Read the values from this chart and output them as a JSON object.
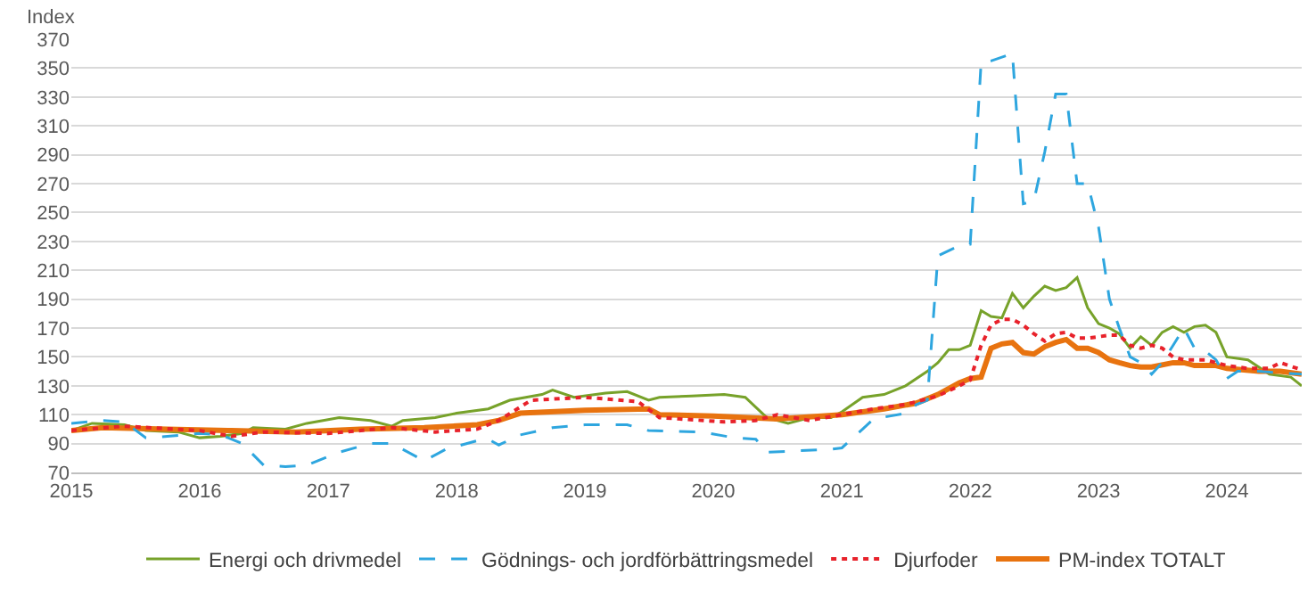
{
  "chart_data": {
    "type": "line",
    "ylabel": "Index",
    "ylim": [
      70,
      370
    ],
    "yticks": [
      70,
      90,
      110,
      130,
      150,
      170,
      190,
      210,
      230,
      250,
      270,
      290,
      310,
      330,
      350,
      370
    ],
    "xlim": [
      "2015-01",
      "2024-08"
    ],
    "xticks": [
      {
        "value": "2015-01",
        "label": "2015"
      },
      {
        "value": "2016-01",
        "label": "2016"
      },
      {
        "value": "2017-01",
        "label": "2017"
      },
      {
        "value": "2018-01",
        "label": "2018"
      },
      {
        "value": "2019-01",
        "label": "2019"
      },
      {
        "value": "2020-01",
        "label": "2020"
      },
      {
        "value": "2021-01",
        "label": "2021"
      },
      {
        "value": "2022-01",
        "label": "2022"
      },
      {
        "value": "2023-01",
        "label": "2023"
      },
      {
        "value": "2024-01",
        "label": "2024"
      }
    ],
    "grid": "y",
    "legend": "bottom",
    "marker": "none",
    "series": [
      {
        "name": "Energi och drivmedel",
        "color": "#77a22a",
        "line_style": "solid",
        "x": [
          "2015-01",
          "2015-03",
          "2015-06",
          "2015-08",
          "2015-11",
          "2016-01",
          "2016-03",
          "2016-05",
          "2016-06",
          "2016-09",
          "2016-11",
          "2017-02",
          "2017-05",
          "2017-07",
          "2017-08",
          "2017-11",
          "2018-01",
          "2018-04",
          "2018-06",
          "2018-09",
          "2018-10",
          "2018-12",
          "2019-03",
          "2019-05",
          "2019-07",
          "2019-08",
          "2019-11",
          "2020-02",
          "2020-04",
          "2020-06",
          "2020-08",
          "2020-10",
          "2020-12",
          "2021-01",
          "2021-03",
          "2021-05",
          "2021-07",
          "2021-09",
          "2021-10",
          "2021-11",
          "2021-12",
          "2022-01",
          "2022-02",
          "2022-03",
          "2022-04",
          "2022-05",
          "2022-06",
          "2022-07",
          "2022-08",
          "2022-09",
          "2022-10",
          "2022-11",
          "2022-12",
          "2023-01",
          "2023-02",
          "2023-03",
          "2023-04",
          "2023-05",
          "2023-06",
          "2023-07",
          "2023-08",
          "2023-09",
          "2023-10",
          "2023-11",
          "2023-12",
          "2024-01",
          "2024-03",
          "2024-05",
          "2024-07",
          "2024-08"
        ],
        "values": [
          99,
          104,
          103,
          99,
          98,
          94,
          95,
          97,
          101,
          100,
          104,
          108,
          106,
          102,
          106,
          108,
          111,
          114,
          120,
          124,
          127,
          122,
          125,
          126,
          120,
          122,
          123,
          124,
          122,
          108,
          104,
          108,
          108,
          112,
          122,
          124,
          130,
          140,
          146,
          155,
          155,
          158,
          182,
          178,
          177,
          194,
          184,
          192,
          199,
          196,
          198,
          205,
          184,
          173,
          170,
          166,
          156,
          164,
          158,
          167,
          171,
          167,
          171,
          172,
          167,
          150,
          148,
          138,
          136,
          130
        ]
      },
      {
        "name": "Gödnings- och jordförbättringsmedel",
        "color": "#2ea6df",
        "line_style": "dashed",
        "x": [
          "2015-01",
          "2015-04",
          "2015-06",
          "2015-08",
          "2015-10",
          "2016-01",
          "2016-03",
          "2016-05",
          "2016-07",
          "2016-09",
          "2016-11",
          "2017-02",
          "2017-05",
          "2017-07",
          "2017-10",
          "2017-12",
          "2018-03",
          "2018-04",
          "2018-05",
          "2018-07",
          "2018-10",
          "2019-01",
          "2019-04",
          "2019-05",
          "2019-07",
          "2019-12",
          "2020-03",
          "2020-05",
          "2020-06",
          "2020-09",
          "2020-12",
          "2021-01",
          "2021-03",
          "2021-04",
          "2021-07",
          "2021-08",
          "2021-09",
          "2021-10",
          "2021-12",
          "2022-01",
          "2022-02",
          "2022-03",
          "2022-05",
          "2022-06",
          "2022-07",
          "2022-08",
          "2022-09",
          "2022-10",
          "2022-11",
          "2022-12",
          "2023-01",
          "2023-02",
          "2023-03",
          "2023-04",
          "2023-05",
          "2023-06",
          "2023-07",
          "2023-08",
          "2023-09",
          "2023-10",
          "2023-11",
          "2023-12",
          "2024-01",
          "2024-02",
          "2024-04",
          "2024-06",
          "2024-08"
        ],
        "values": [
          104,
          106,
          105,
          94,
          95,
          97,
          96,
          90,
          75,
          74,
          75,
          84,
          90,
          90,
          78,
          86,
          92,
          93,
          89,
          96,
          101,
          103,
          103,
          103,
          99,
          98,
          94,
          93,
          84,
          85,
          86,
          87,
          100,
          107,
          111,
          117,
          120,
          220,
          227,
          228,
          354,
          355,
          360,
          256,
          258,
          292,
          332,
          332,
          270,
          270,
          240,
          190,
          170,
          150,
          146,
          138,
          146,
          158,
          170,
          156,
          154,
          148,
          135,
          140,
          140,
          139,
          138
        ]
      },
      {
        "name": "Djurfoder",
        "color": "#e8222b",
        "line_style": "dotted",
        "x": [
          "2015-01",
          "2015-06",
          "2016-01",
          "2016-04",
          "2016-07",
          "2017-01",
          "2017-07",
          "2017-11",
          "2018-03",
          "2018-05",
          "2018-08",
          "2019-01",
          "2019-06",
          "2019-08",
          "2020-02",
          "2020-05",
          "2020-07",
          "2020-10",
          "2021-01",
          "2021-04",
          "2021-07",
          "2021-10",
          "2021-12",
          "2022-01",
          "2022-02",
          "2022-03",
          "2022-04",
          "2022-05",
          "2022-06",
          "2022-07",
          "2022-08",
          "2022-09",
          "2022-10",
          "2022-11",
          "2022-12",
          "2023-01",
          "2023-02",
          "2023-03",
          "2023-04",
          "2023-05",
          "2023-06",
          "2023-07",
          "2023-08",
          "2023-09",
          "2023-10",
          "2023-11",
          "2023-12",
          "2024-01",
          "2024-03",
          "2024-05",
          "2024-06",
          "2024-08"
        ],
        "values": [
          99,
          102,
          99,
          95,
          98,
          97,
          101,
          98,
          100,
          106,
          120,
          122,
          119,
          108,
          105,
          106,
          110,
          106,
          110,
          114,
          117,
          123,
          130,
          134,
          158,
          172,
          176,
          176,
          172,
          166,
          161,
          166,
          167,
          163,
          163,
          164,
          165,
          165,
          158,
          156,
          158,
          156,
          150,
          148,
          148,
          148,
          146,
          144,
          142,
          142,
          146,
          141
        ]
      },
      {
        "name": "PM-index TOTALT",
        "color": "#e8730f",
        "line_style": "solid",
        "x": [
          "2015-01",
          "2015-04",
          "2015-10",
          "2016-04",
          "2016-10",
          "2017-04",
          "2017-10",
          "2018-03",
          "2018-05",
          "2018-07",
          "2019-01",
          "2019-07",
          "2019-08",
          "2020-01",
          "2020-07",
          "2021-01",
          "2021-05",
          "2021-08",
          "2021-10",
          "2021-12",
          "2022-01",
          "2022-02",
          "2022-03",
          "2022-04",
          "2022-05",
          "2022-06",
          "2022-07",
          "2022-08",
          "2022-09",
          "2022-10",
          "2022-11",
          "2022-12",
          "2023-01",
          "2023-02",
          "2023-03",
          "2023-04",
          "2023-05",
          "2023-06",
          "2023-08",
          "2023-09",
          "2023-10",
          "2023-12",
          "2024-01",
          "2024-04",
          "2024-06",
          "2024-08"
        ],
        "values": [
          99,
          101,
          100,
          99,
          98,
          100,
          101,
          103,
          106,
          111,
          113,
          114,
          110,
          109,
          107,
          110,
          114,
          118,
          124,
          132,
          135,
          136,
          156,
          159,
          160,
          153,
          152,
          157,
          160,
          162,
          156,
          156,
          153,
          148,
          146,
          144,
          143,
          143,
          146,
          146,
          144,
          144,
          142,
          140,
          140,
          138
        ]
      }
    ]
  }
}
